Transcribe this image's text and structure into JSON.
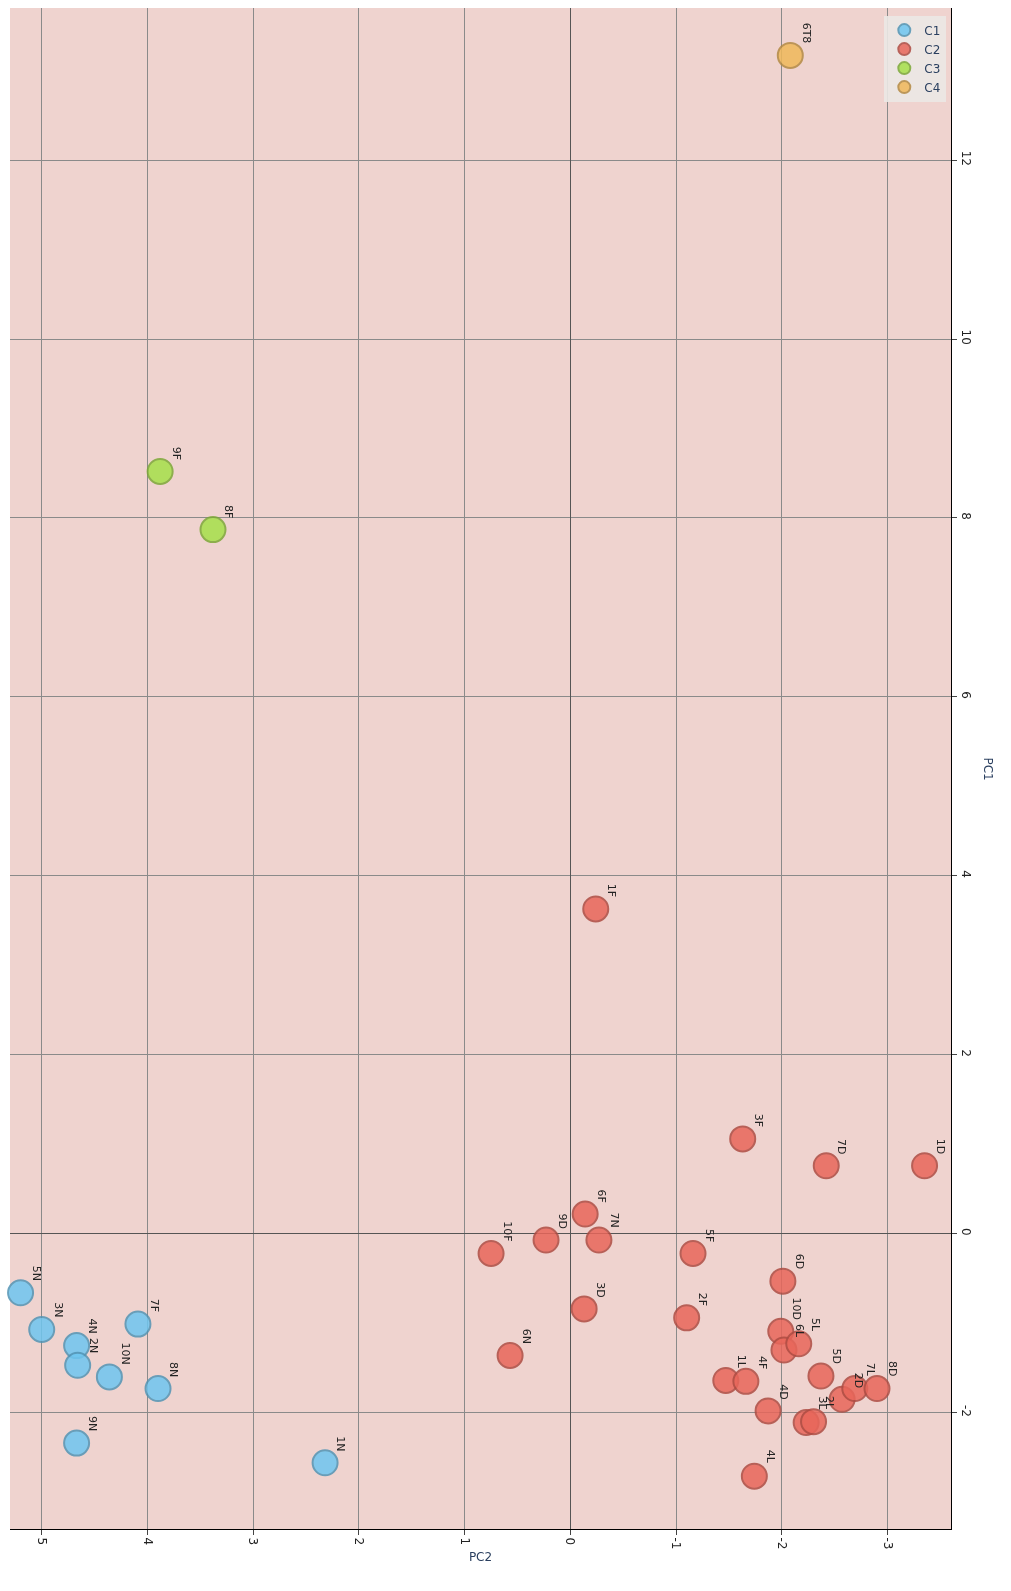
{
  "chart_data": {
    "type": "scatter",
    "xlabel": "PC2",
    "ylabel": "PC1",
    "xlim": [
      5.3,
      -3.6
    ],
    "ylim": [
      -3.3,
      13.7
    ],
    "xticks": [
      5,
      4,
      3,
      2,
      1,
      0,
      -1,
      -2,
      -3
    ],
    "yticks": [
      -2,
      0,
      2,
      4,
      6,
      8,
      10,
      12
    ],
    "grid": true,
    "legend": "top right",
    "marker": "circle",
    "series": [
      {
        "name": "C1",
        "color": "#6ec6f0",
        "values": [
          -0.66,
          -1.07,
          -1.25,
          -1.47,
          -1.6,
          -1.01,
          -1.73,
          -2.34,
          -2.56
        ],
        "x": [
          5.2,
          5.0,
          4.67,
          4.66,
          4.36,
          4.09,
          3.9,
          4.67,
          2.32
        ]
      },
      {
        "name": "C2",
        "color": "#e8665a",
        "values": [
          -0.22,
          -0.07,
          0.22,
          -0.07,
          -0.84,
          -1.36,
          3.63,
          -0.22,
          -0.94,
          1.06,
          0.76,
          0.76,
          -0.53,
          -1.09,
          -1.3,
          -1.23,
          -1.64,
          -1.65,
          -1.59,
          -1.98,
          -1.85,
          -1.73,
          -1.73,
          -2.11,
          -2.1,
          -2.71
        ],
        "x": [
          0.75,
          0.23,
          -0.14,
          -0.27,
          -0.13,
          0.57,
          -0.24,
          -1.16,
          -1.1,
          -1.63,
          -2.42,
          -3.35,
          -2.01,
          -1.99,
          -2.02,
          -2.16,
          -1.47,
          -1.66,
          -2.37,
          -1.87,
          -2.57,
          -2.69,
          -2.9,
          -2.23,
          -2.3,
          -1.74
        ]
      },
      {
        "name": "C3",
        "color": "#a6e04a",
        "values": [
          8.52,
          7.87
        ],
        "x": [
          3.88,
          3.38
        ]
      },
      {
        "name": "C4",
        "color": "#f0b85a",
        "values": [
          13.17
        ],
        "x": [
          -2.08
        ]
      }
    ],
    "annotations": [
      {
        "text": "5N",
        "y": -0.66,
        "x": 5.2
      },
      {
        "text": "3N",
        "y": -1.07,
        "x": 5.0
      },
      {
        "text": "4N",
        "y": -1.25,
        "x": 4.67
      },
      {
        "text": "2N",
        "y": -1.47,
        "x": 4.66
      },
      {
        "text": "10N",
        "y": -1.6,
        "x": 4.36
      },
      {
        "text": "7F",
        "y": -1.01,
        "x": 4.09
      },
      {
        "text": "8N",
        "y": -1.73,
        "x": 3.9
      },
      {
        "text": "9N",
        "y": -2.34,
        "x": 4.67
      },
      {
        "text": "1N",
        "y": -2.56,
        "x": 2.32
      },
      {
        "text": "10F",
        "y": -0.22,
        "x": 0.75
      },
      {
        "text": "9D",
        "y": -0.07,
        "x": 0.23
      },
      {
        "text": "6F",
        "y": 0.22,
        "x": -0.14
      },
      {
        "text": "7N",
        "y": -0.07,
        "x": -0.27
      },
      {
        "text": "3D",
        "y": -0.84,
        "x": -0.13
      },
      {
        "text": "6N",
        "y": -1.36,
        "x": 0.57
      },
      {
        "text": "1F",
        "y": 3.63,
        "x": -0.24
      },
      {
        "text": "5F",
        "y": -0.22,
        "x": -1.16
      },
      {
        "text": "2F",
        "y": -0.94,
        "x": -1.1
      },
      {
        "text": "3F",
        "y": 1.06,
        "x": -1.63
      },
      {
        "text": "7D",
        "y": 0.76,
        "x": -2.42
      },
      {
        "text": "1D",
        "y": 0.76,
        "x": -3.35
      },
      {
        "text": "6D",
        "y": -0.53,
        "x": -2.01
      },
      {
        "text": "10D",
        "y": -1.09,
        "x": -1.99
      },
      {
        "text": "6L",
        "y": -1.3,
        "x": -2.02
      },
      {
        "text": "5L",
        "y": -1.23,
        "x": -2.16
      },
      {
        "text": "1L",
        "y": -1.64,
        "x": -1.47
      },
      {
        "text": "4F",
        "y": -1.65,
        "x": -1.66
      },
      {
        "text": "5D",
        "y": -1.59,
        "x": -2.37
      },
      {
        "text": "4D",
        "y": -1.98,
        "x": -1.87
      },
      {
        "text": "2D",
        "y": -1.85,
        "x": -2.57
      },
      {
        "text": "7L",
        "y": -1.73,
        "x": -2.69
      },
      {
        "text": "8D",
        "y": -1.73,
        "x": -2.9
      },
      {
        "text": "3L",
        "y": -2.11,
        "x": -2.23
      },
      {
        "text": "2L",
        "y": -2.1,
        "x": -2.3
      },
      {
        "text": "4L",
        "y": -2.71,
        "x": -1.74
      },
      {
        "text": "9F",
        "y": 8.52,
        "x": 3.88
      },
      {
        "text": "8F",
        "y": 7.87,
        "x": 3.38
      },
      {
        "text": "6T8",
        "y": 13.17,
        "x": -2.08
      }
    ]
  }
}
